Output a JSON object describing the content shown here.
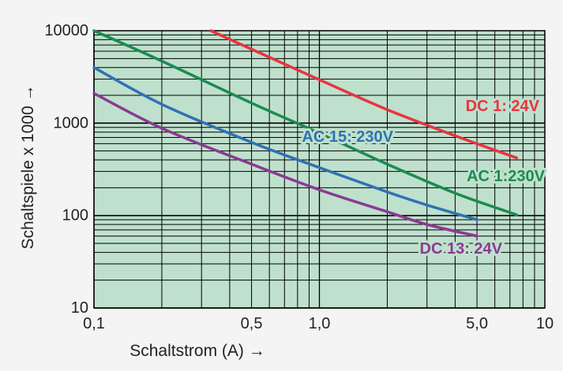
{
  "chart_data": {
    "type": "line",
    "xlabel": "Schaltstrom (A) →",
    "ylabel": "Schaltspiele x 1000 →",
    "x_scale": "log",
    "y_scale": "log",
    "xlim": [
      0.1,
      10
    ],
    "ylim": [
      10,
      10000
    ],
    "grid": true,
    "x_ticks": [
      {
        "value": 0.1,
        "label": "0,1"
      },
      {
        "value": 0.5,
        "label": "0,5"
      },
      {
        "value": 1,
        "label": "1,0"
      },
      {
        "value": 5,
        "label": "5,0"
      },
      {
        "value": 10,
        "label": "10"
      }
    ],
    "y_ticks": [
      {
        "value": 10,
        "label": "10"
      },
      {
        "value": 100,
        "label": "100"
      },
      {
        "value": 1000,
        "label": "1000"
      },
      {
        "value": 10000,
        "label": "10000"
      }
    ],
    "series": [
      {
        "name": "DC 1: 24V",
        "color": "#e8343f",
        "points": [
          [
            0.33,
            10000
          ],
          [
            0.5,
            6300
          ],
          [
            1.0,
            2950
          ],
          [
            2.0,
            1400
          ],
          [
            4.0,
            730
          ],
          [
            7.5,
            420
          ]
        ]
      },
      {
        "name": "AC 1:230V",
        "color": "#1a8c50",
        "points": [
          [
            0.1,
            10000
          ],
          [
            0.2,
            4700
          ],
          [
            0.5,
            1650
          ],
          [
            1.0,
            780
          ],
          [
            2.0,
            360
          ],
          [
            4.0,
            175
          ],
          [
            7.5,
            102
          ]
        ]
      },
      {
        "name": "AC 15: 230V",
        "color": "#2f72b3",
        "points": [
          [
            0.1,
            4000
          ],
          [
            0.2,
            1600
          ],
          [
            0.5,
            620
          ],
          [
            1.0,
            330
          ],
          [
            2.0,
            180
          ],
          [
            3.0,
            130
          ],
          [
            5.0,
            90
          ]
        ]
      },
      {
        "name": "DC 13: 24V",
        "color": "#8a3a93",
        "points": [
          [
            0.1,
            2100
          ],
          [
            0.2,
            880
          ],
          [
            0.5,
            360
          ],
          [
            1.0,
            190
          ],
          [
            2.0,
            110
          ],
          [
            3.0,
            80
          ],
          [
            5.0,
            60
          ]
        ]
      }
    ]
  },
  "colors": {
    "plot_background": "#bfe0cd",
    "grid": "#000000",
    "page_background": "#f4f4f4"
  }
}
